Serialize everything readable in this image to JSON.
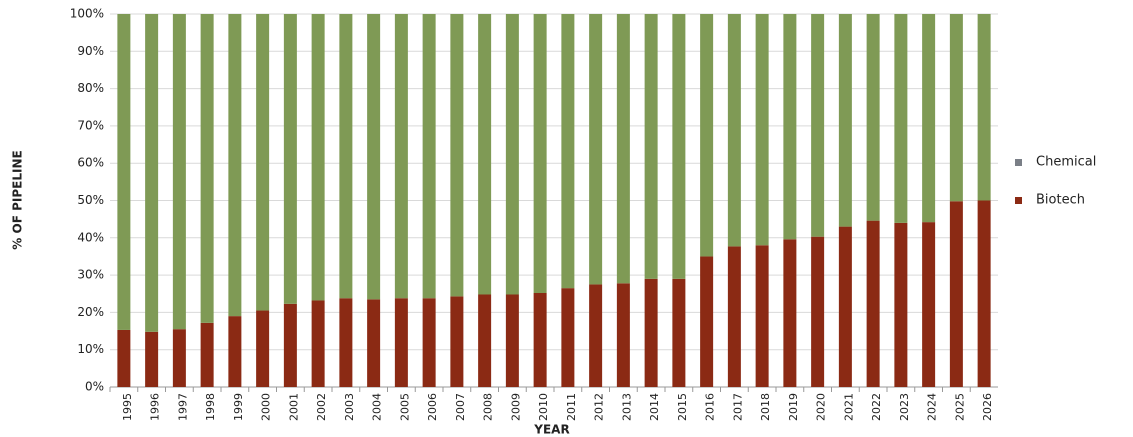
{
  "chart_data": {
    "type": "stacked_bar",
    "x_label": "YEAR",
    "y_label": "% OF PIPELINE",
    "categories": [
      "1995",
      "1996",
      "1997",
      "1998",
      "1999",
      "2000",
      "2001",
      "2002",
      "2003",
      "2004",
      "2005",
      "2006",
      "2007",
      "2008",
      "2009",
      "2010",
      "2011",
      "2012",
      "2013",
      "2014",
      "2015",
      "2016",
      "2017",
      "2018",
      "2019",
      "2020",
      "2021",
      "2022",
      "2023",
      "2024",
      "2025",
      "2026"
    ],
    "series": [
      {
        "name": "Biotech",
        "color": "#8b2a14",
        "legend_color": "#8b2a14",
        "values": [
          15.3,
          14.8,
          15.5,
          17.2,
          19,
          20.5,
          22.3,
          23.2,
          23.8,
          23.5,
          23.8,
          23.8,
          24.3,
          24.8,
          24.8,
          25.2,
          26.5,
          27.5,
          27.8,
          29,
          29,
          35,
          37.7,
          38,
          39.6,
          40.3,
          43,
          44.6,
          44,
          44.2,
          49.8,
          50
        ]
      },
      {
        "name": "Chemical",
        "color": "#7f9a55",
        "legend_color": "#7a7f87",
        "values": [
          84.7,
          85.2,
          84.5,
          82.8,
          81,
          79.5,
          77.7,
          76.8,
          76.2,
          76.5,
          76.2,
          76.2,
          75.7,
          75.2,
          75.2,
          74.8,
          73.5,
          72.5,
          72.2,
          71,
          71,
          65,
          62.3,
          62,
          60.4,
          59.7,
          57,
          55.4,
          56,
          55.8,
          50.2,
          50
        ]
      }
    ],
    "ylim": [
      0,
      100
    ],
    "yticks": [
      {
        "value": 0,
        "label": "0%"
      },
      {
        "value": 10,
        "label": "10%"
      },
      {
        "value": 20,
        "label": "20%"
      },
      {
        "value": 30,
        "label": "30%"
      },
      {
        "value": 40,
        "label": "40%"
      },
      {
        "value": 50,
        "label": "50%"
      },
      {
        "value": 60,
        "label": "60%"
      },
      {
        "value": 70,
        "label": "70%"
      },
      {
        "value": 80,
        "label": "80%"
      },
      {
        "value": 90,
        "label": "90%"
      },
      {
        "value": 100,
        "label": "100%"
      }
    ],
    "grid": true,
    "legend_position": "right"
  }
}
